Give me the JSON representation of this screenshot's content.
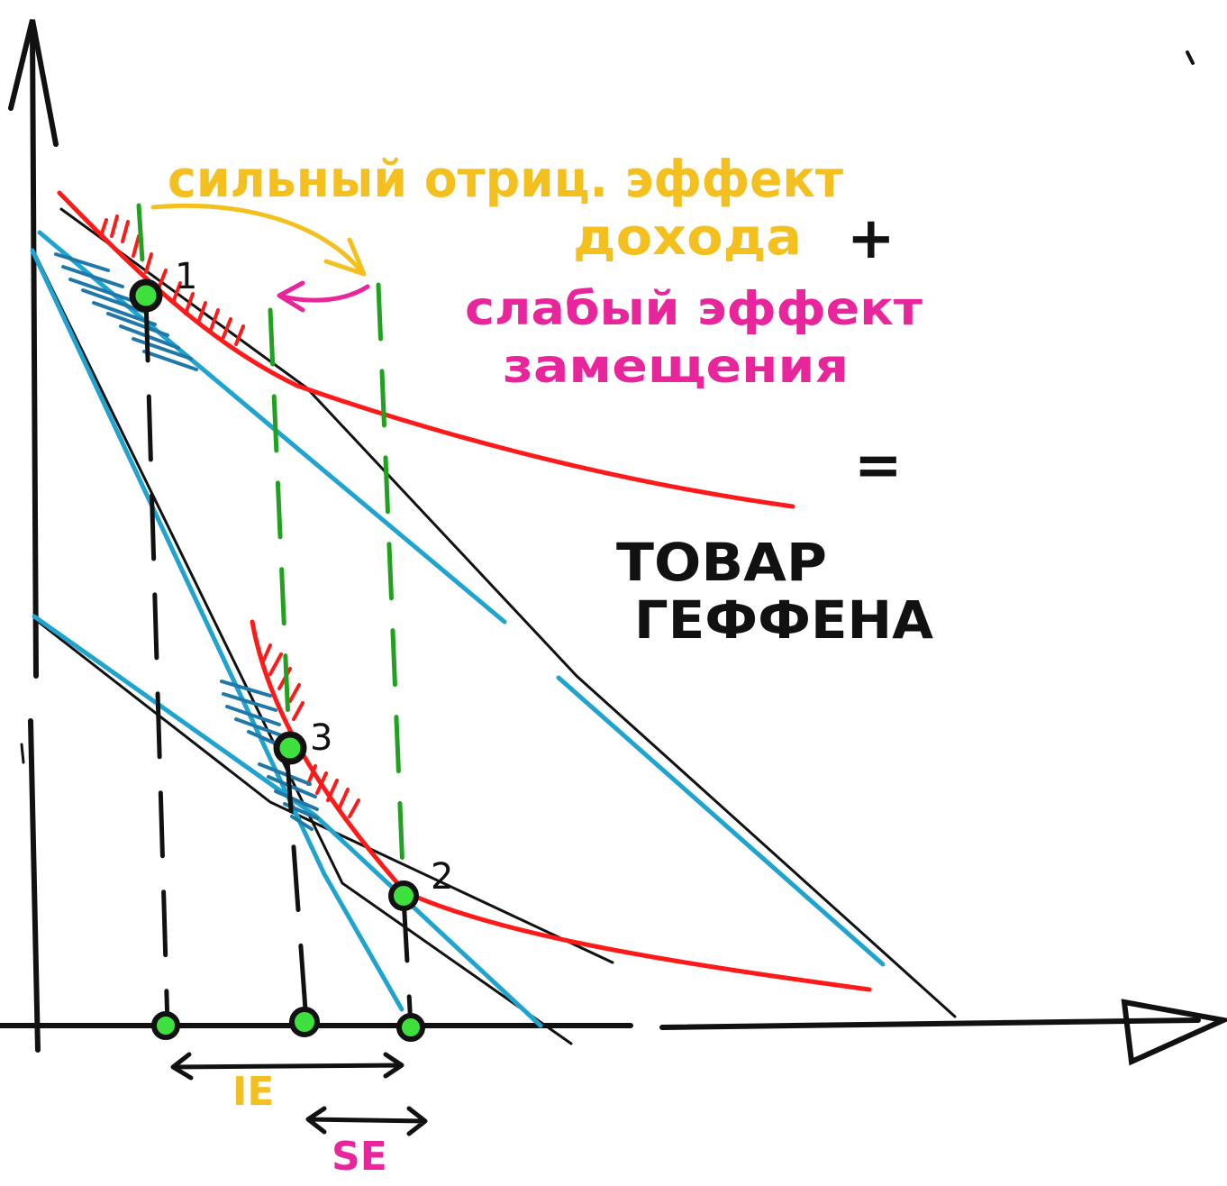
{
  "labels": {
    "income_effect_line1": "сильный отриц. эффект",
    "income_effect_line2": "дохода",
    "plus": "+",
    "substitution_line1": "слабый эффект",
    "substitution_line2": "замещения",
    "equals": "=",
    "result_line1": "ТОВАР",
    "result_line2": "ГЕФФЕНА",
    "ie": "IE",
    "se": "SE"
  },
  "points": [
    {
      "id": "p1",
      "label": "1"
    },
    {
      "id": "p2",
      "label": "2"
    },
    {
      "id": "p3",
      "label": "3"
    }
  ],
  "colors": {
    "axis": "#111111",
    "indifference": "#ff1a1a",
    "budget": "#1fa3cf",
    "guide": "#22a020",
    "income_text": "#f4c020",
    "substitution_text": "#e8259a",
    "point_fill": "#3de03d"
  }
}
